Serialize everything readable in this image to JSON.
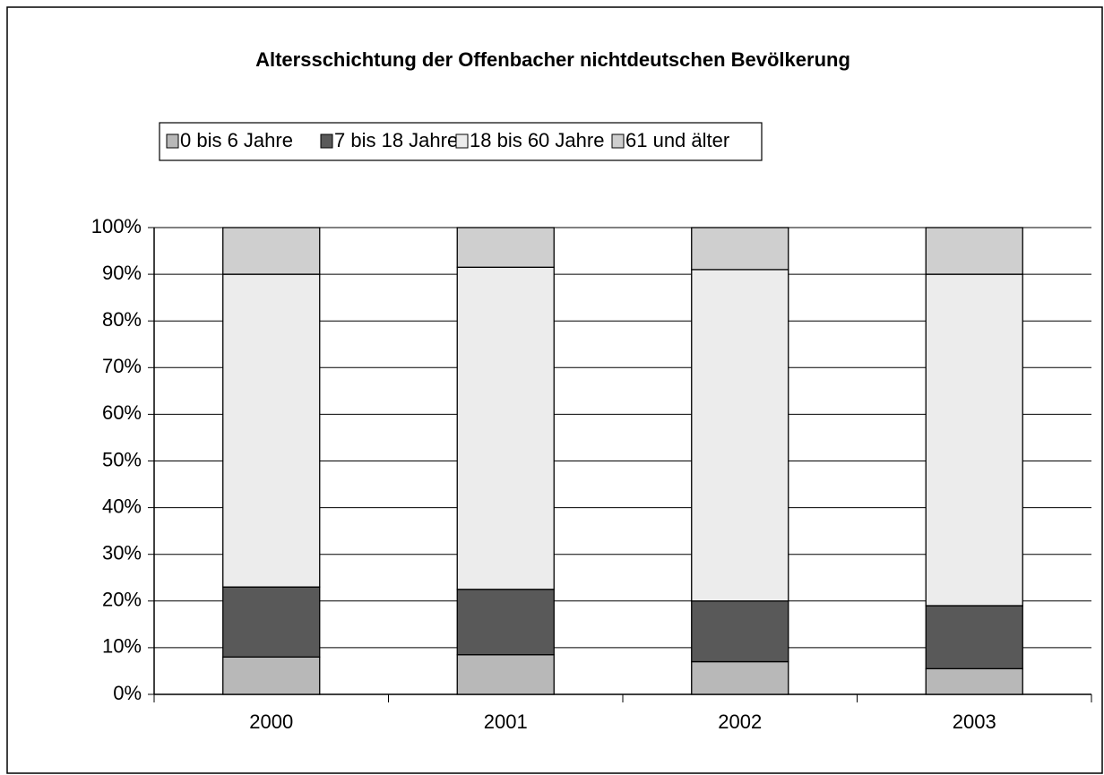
{
  "chart_data": {
    "type": "stacked_bar",
    "title": "Altersschichtung der Offenbacher nichtdeutschen Bevölkerung",
    "categories": [
      "2000",
      "2001",
      "2002",
      "2003"
    ],
    "series": [
      {
        "name": "0 bis 6 Jahre",
        "color": "#b8b8b8",
        "values": [
          8,
          8.5,
          7,
          5.5
        ]
      },
      {
        "name": "7 bis 18 Jahre",
        "color": "#595959",
        "values": [
          15,
          14,
          13,
          13.5
        ]
      },
      {
        "name": "18 bis 60 Jahre",
        "color": "#ececec",
        "values": [
          67,
          69,
          71,
          71
        ]
      },
      {
        "name": "61 und älter",
        "color": "#cfcfcf",
        "values": [
          10,
          8.5,
          9,
          10
        ]
      }
    ],
    "ylim": [
      0,
      100
    ],
    "yticks": [
      {
        "value": 0,
        "label": "0%"
      },
      {
        "value": 10,
        "label": "10%"
      },
      {
        "value": 20,
        "label": "20%"
      },
      {
        "value": 30,
        "label": "30%"
      },
      {
        "value": 40,
        "label": "40%"
      },
      {
        "value": 50,
        "label": "50%"
      },
      {
        "value": 60,
        "label": "60%"
      },
      {
        "value": 70,
        "label": "70%"
      },
      {
        "value": 80,
        "label": "80%"
      },
      {
        "value": 90,
        "label": "90%"
      },
      {
        "value": 100,
        "label": "100%"
      }
    ],
    "grid": true,
    "legend": "top"
  }
}
